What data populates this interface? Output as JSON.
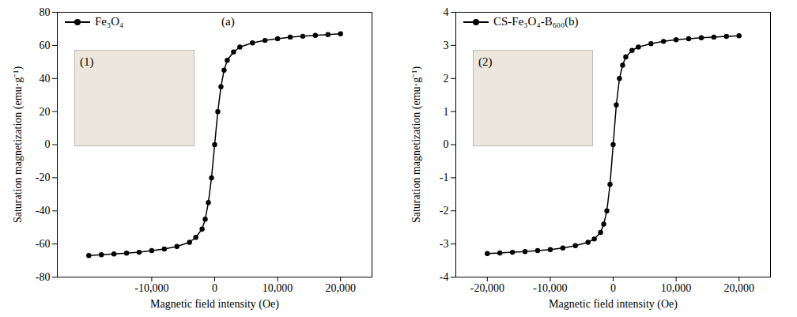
{
  "chart_data": [
    {
      "type": "line",
      "title": "(a)",
      "annotations": [
        {
          "text": "(1)"
        }
      ],
      "x_label": "Magnetic field intensity (Oe)",
      "y_label": "Saturation magnetization (emu·g⁻¹)",
      "x": [
        -20000,
        -18000,
        -16000,
        -14000,
        -12000,
        -10000,
        -8000,
        -6000,
        -4000,
        -3000,
        -2000,
        -1500,
        -1000,
        -500,
        0,
        500,
        1000,
        1500,
        2000,
        3000,
        4000,
        6000,
        8000,
        10000,
        12000,
        14000,
        16000,
        18000,
        20000
      ],
      "series": [
        {
          "name": "Fe₃O₄",
          "color": "#000000",
          "marker": "circle",
          "values": [
            -67,
            -66.5,
            -66,
            -65.5,
            -65,
            -64,
            -63,
            -61.5,
            -59,
            -56,
            -51,
            -45,
            -35,
            -20,
            0,
            20,
            35,
            45,
            51,
            56,
            59,
            61.5,
            63,
            64,
            65,
            65.5,
            66,
            66.5,
            67
          ]
        }
      ],
      "xlim": [
        -25000,
        25000
      ],
      "xticks": [
        {
          "value": -10000,
          "label": "-10,000"
        },
        0,
        {
          "value": 10000,
          "label": "10,000"
        },
        {
          "value": 20000,
          "label": "20,000"
        }
      ],
      "ylim": [
        -80,
        80
      ],
      "yticks": [
        -80,
        -60,
        -40,
        -20,
        0,
        20,
        40,
        60,
        80
      ],
      "grid": false,
      "legend": "upper left"
    },
    {
      "type": "line",
      "title": "(b)",
      "annotations": [
        {
          "text": "(2)"
        }
      ],
      "x_label": "Magnetic field intensity (Oe)",
      "y_label": "Saturation magnetization (emu·g⁻¹)",
      "x": [
        -20000,
        -18000,
        -16000,
        -14000,
        -12000,
        -10000,
        -8000,
        -6000,
        -4000,
        -3000,
        -2000,
        -1500,
        -1000,
        -500,
        0,
        500,
        1000,
        1500,
        2000,
        3000,
        4000,
        6000,
        8000,
        10000,
        12000,
        14000,
        16000,
        18000,
        20000
      ],
      "series": [
        {
          "name": "CS-Fe₃O₄-B₆₀₀",
          "color": "#000000",
          "marker": "circle",
          "values": [
            -3.29,
            -3.27,
            -3.25,
            -3.23,
            -3.2,
            -3.17,
            -3.12,
            -3.05,
            -2.95,
            -2.85,
            -2.65,
            -2.4,
            -2.0,
            -1.2,
            0,
            1.2,
            2.0,
            2.4,
            2.65,
            2.85,
            2.95,
            3.05,
            3.12,
            3.17,
            3.2,
            3.23,
            3.25,
            3.27,
            3.29
          ]
        }
      ],
      "xlim": [
        -25000,
        25000
      ],
      "xticks": [
        {
          "value": -20000,
          "label": "-20,000"
        },
        {
          "value": -10000,
          "label": "-10,000"
        },
        0,
        {
          "value": 10000,
          "label": "10,000"
        },
        {
          "value": 20000,
          "label": "20,000"
        }
      ],
      "ylim": [
        -4,
        4
      ],
      "yticks": [
        -4,
        -3,
        -2,
        -1,
        0,
        1,
        2,
        3,
        4
      ],
      "grid": false,
      "legend": "upper left"
    }
  ]
}
